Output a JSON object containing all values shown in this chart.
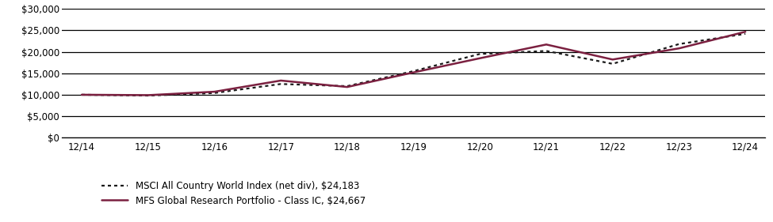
{
  "x_labels": [
    "12/14",
    "12/15",
    "12/16",
    "12/17",
    "12/18",
    "12/19",
    "12/20",
    "12/21",
    "12/22",
    "12/23",
    "12/24"
  ],
  "portfolio_values": [
    10000,
    9900,
    10700,
    13300,
    11800,
    15200,
    18500,
    21700,
    18200,
    20800,
    24667
  ],
  "index_values": [
    10000,
    9800,
    10400,
    12500,
    12000,
    15500,
    19500,
    20200,
    17200,
    21800,
    24183
  ],
  "portfolio_label": "MFS Global Research Portfolio - Class IC, $24,667",
  "index_label": "MSCI All Country World Index (net div), $24,183",
  "portfolio_color": "#7b2040",
  "index_color": "#1a1a1a",
  "ylim": [
    0,
    30000
  ],
  "yticks": [
    0,
    5000,
    10000,
    15000,
    20000,
    25000,
    30000
  ],
  "background_color": "#ffffff",
  "grid_color": "#000000"
}
